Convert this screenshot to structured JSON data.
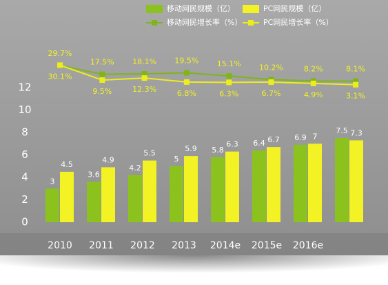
{
  "chart_data": {
    "type": "bar",
    "categories": [
      "2010",
      "2011",
      "2012",
      "2013",
      "2014e",
      "2015e",
      "2016e",
      null
    ],
    "series": [
      {
        "name": "移动网民规模（亿）",
        "color": "#8cc21e",
        "values": [
          3.0,
          3.6,
          4.2,
          5.0,
          5.8,
          6.4,
          6.9,
          7.5
        ]
      },
      {
        "name": "PC网民规模（亿）",
        "color": "#f2f224",
        "values": [
          4.5,
          4.9,
          5.5,
          5.9,
          6.3,
          6.7,
          7.0,
          7.3
        ]
      },
      {
        "name": "移动网民增长率（%）",
        "type": "line",
        "axis": "y2",
        "color": "#7fb51a",
        "values": [
          29.7,
          17.5,
          18.1,
          19.5,
          15.1,
          10.2,
          8.2,
          8.1
        ]
      },
      {
        "name": "PC网民增长率（%）",
        "type": "line",
        "axis": "y2",
        "color": "#eded1e",
        "values": [
          30.1,
          9.5,
          12.3,
          6.8,
          6.3,
          6.7,
          4.9,
          3.1
        ]
      }
    ],
    "line_value_labels": [
      [
        "29.7%",
        "17.5%",
        "18.1%",
        "19.5%",
        "15.1%",
        "10.2%",
        "8.2%",
        "8.1%"
      ],
      [
        "30.1%",
        "9.5%",
        "12.3%",
        "6.8%",
        "6.3%",
        "6.7%",
        "4.9%",
        "3.1%"
      ]
    ],
    "ylim": [
      0,
      12
    ],
    "yticks": [
      0,
      2,
      4,
      6,
      8,
      10,
      12
    ],
    "y2lim": [
      0,
      100
    ]
  }
}
